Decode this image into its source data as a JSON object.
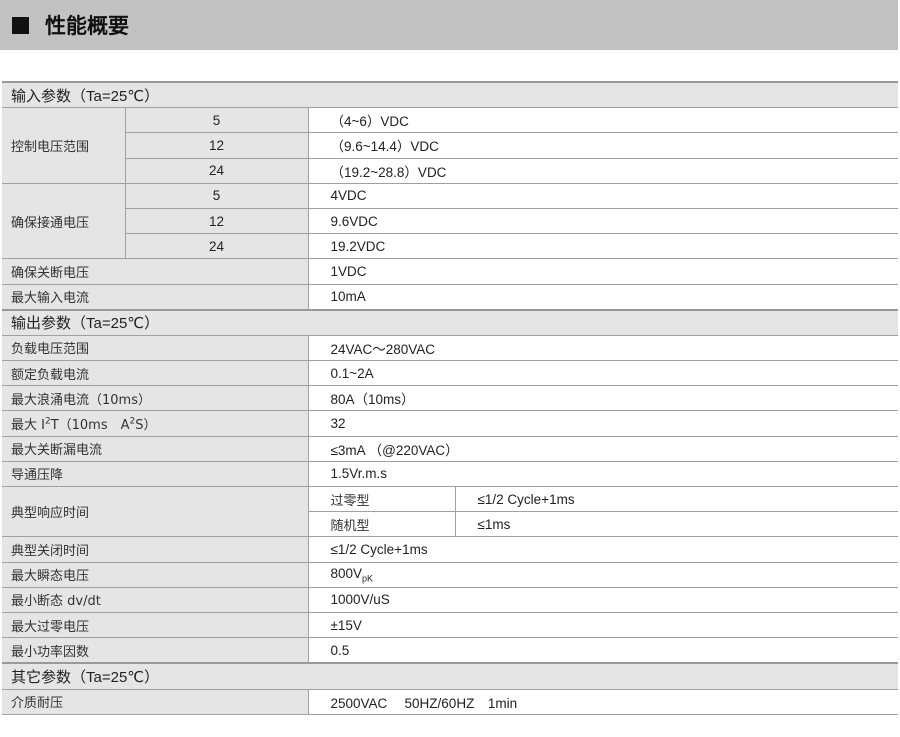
{
  "header": {
    "title": "性能概要"
  },
  "sections": {
    "input": {
      "title": "输入参数（Ta=25℃）",
      "control_voltage": {
        "label": "控制电压范围",
        "rows": [
          {
            "k": "5",
            "v": "（4~6）VDC"
          },
          {
            "k": "12",
            "v": "（9.6~14.4）VDC"
          },
          {
            "k": "24",
            "v": "（19.2~28.8）VDC"
          }
        ]
      },
      "must_operate": {
        "label": "确保接通电压",
        "rows": [
          {
            "k": "5",
            "v": "4VDC"
          },
          {
            "k": "12",
            "v": "9.6VDC"
          },
          {
            "k": "24",
            "v": "19.2VDC"
          }
        ]
      },
      "must_release": {
        "label": "确保关断电压",
        "v": "1VDC"
      },
      "max_input_current": {
        "label": "最大输入电流",
        "v": "10mA"
      }
    },
    "output": {
      "title": "输出参数（Ta=25℃）",
      "rows": [
        {
          "label": "负载电压范围",
          "v": "24VAC～280VAC"
        },
        {
          "label": "额定负载电流",
          "v": "0.1~2A"
        },
        {
          "label": "最大浪涌电流（10ms）",
          "v": "80A（10ms）"
        },
        {
          "label_pre": "最大 I",
          "label_sup": "2",
          "label_mid": "T（10ms　A",
          "label_sup2": "2",
          "label_post": "S）",
          "v": "32"
        },
        {
          "label": "最大关断漏电流",
          "v": "≤3mA （@220VAC）"
        },
        {
          "label": "导通压降",
          "v": "1.5Vr.m.s"
        }
      ],
      "response": {
        "label": "典型响应时间",
        "rows": [
          {
            "k": "过零型",
            "v": "≤1/2 Cycle+1ms"
          },
          {
            "k": "随机型",
            "v": "≤1ms"
          }
        ]
      },
      "rows2": [
        {
          "label": "典型关闭时间",
          "v": "≤1/2 Cycle+1ms"
        },
        {
          "label": "最大瞬态电压",
          "v": "800V",
          "v_sub": "pK"
        },
        {
          "label": "最小断态 dv/dt",
          "v": "1000V/uS"
        },
        {
          "label": "最大过零电压",
          "v": "±15V"
        },
        {
          "label": "最小功率因数",
          "v": "0.5"
        }
      ]
    },
    "other": {
      "title": "其它参数（Ta=25℃）",
      "rows": [
        {
          "label": "介质耐压",
          "v": "2500VAC　 50HZ/60HZ　1min"
        }
      ]
    }
  }
}
